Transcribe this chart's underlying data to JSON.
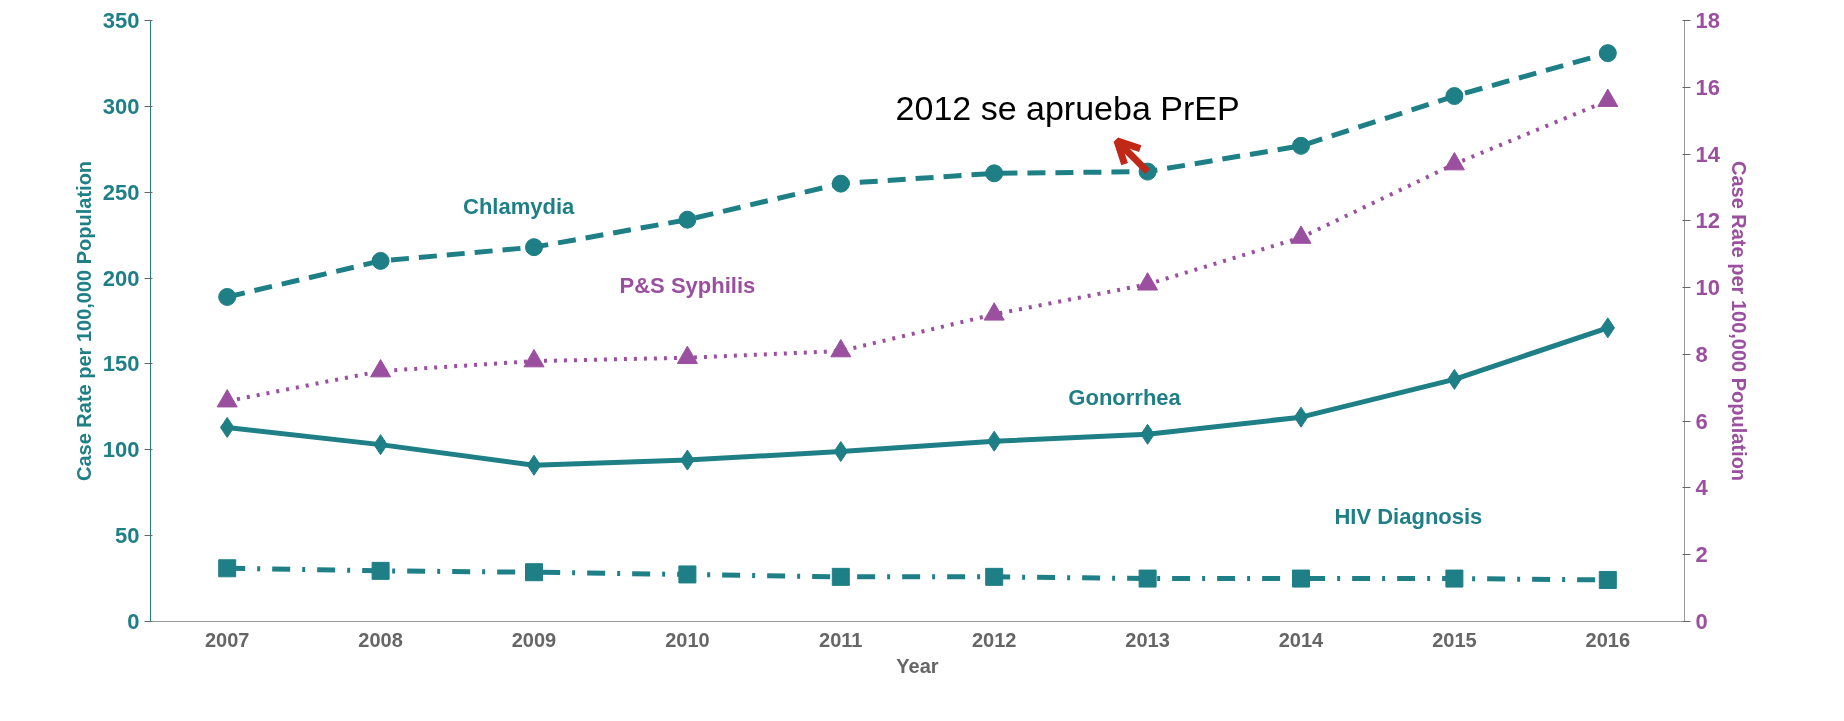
{
  "chart_data": {
    "type": "line",
    "xlabel": "Year",
    "ylabel": "Case Rate per 100,000 Population",
    "y2label": "Case Rate per 100,000 Population",
    "categories": [
      "2007",
      "2008",
      "2009",
      "2010",
      "2011",
      "2012",
      "2013",
      "2014",
      "2015",
      "2016"
    ],
    "series": [
      {
        "name": "Chlamydia",
        "color": "#1f7f86",
        "marker": "circle",
        "line_style": "dashed",
        "values": [
          189,
          210,
          218,
          234,
          255,
          261,
          262,
          277,
          306,
          331
        ]
      },
      {
        "name": "P&S Syphilis",
        "color": "#9b4f9f",
        "marker": "triangle",
        "line_style": "dotted",
        "axis": "y2",
        "values": [
          6.6,
          7.5,
          7.8,
          7.9,
          8.1,
          9.2,
          10.1,
          11.5,
          13.7,
          15.6
        ]
      },
      {
        "name": "Gonorrhea",
        "color": "#1f7f86",
        "marker": "diamond",
        "line_style": "solid",
        "values": [
          113,
          103,
          91,
          94,
          99,
          105,
          109,
          119,
          141,
          171
        ]
      },
      {
        "name": "HIV Diagnosis",
        "color": "#1f7f86",
        "marker": "square",
        "line_style": "dashdot",
        "values": [
          31,
          29.5,
          28.7,
          27.4,
          26,
          26,
          25,
          25,
          25,
          24.2
        ]
      }
    ],
    "ylim": [
      0,
      350
    ],
    "yticks": [
      0,
      50,
      100,
      150,
      200,
      250,
      300,
      350
    ],
    "y2lim": [
      0,
      18
    ],
    "y2ticks": [
      0,
      2,
      4,
      6,
      8,
      10,
      12,
      14,
      16,
      18
    ],
    "grid": false,
    "annotations": [
      {
        "text": "2012 se aprueba PrEP",
        "x": "2013",
        "y": 262
      }
    ]
  }
}
